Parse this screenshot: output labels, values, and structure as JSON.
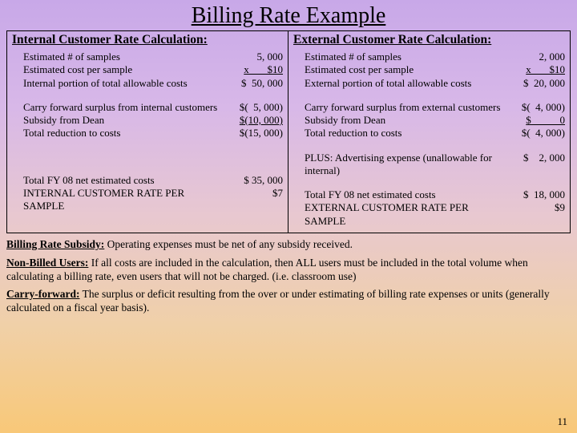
{
  "title": "Billing Rate Example",
  "internal": {
    "heading": "Internal Customer Rate Calculation:",
    "rows1": [
      {
        "label": "Estimated # of samples",
        "value": "5, 000"
      },
      {
        "label": "Estimated cost per sample",
        "value": "x       $10",
        "underline": true
      },
      {
        "label": "Internal portion of total allowable costs",
        "value": "$  50, 000"
      }
    ],
    "rows2": [
      {
        "label": "Carry forward surplus from internal customers",
        "value": "$(  5, 000)"
      },
      {
        "label": "Subsidy from Dean",
        "value": "$(10, 000)",
        "underline": true
      },
      {
        "label": "Total reduction to costs",
        "value": "$(15, 000)"
      }
    ],
    "rows3": [
      {
        "label": "Total FY 08 net estimated costs",
        "value": "$ 35, 000"
      },
      {
        "label": "INTERNAL CUSTOMER RATE PER SAMPLE",
        "value": "$7"
      }
    ]
  },
  "external": {
    "heading": "External Customer Rate Calculation:",
    "rows1": [
      {
        "label": "Estimated # of samples",
        "value": "2, 000"
      },
      {
        "label": "Estimated cost per sample",
        "value": "x       $10",
        "underline": true
      },
      {
        "label": "External portion of total allowable costs",
        "value": "$  20, 000"
      }
    ],
    "rows2": [
      {
        "label": "Carry forward surplus from external customers",
        "value": "$(  4, 000)"
      },
      {
        "label": "Subsidy from Dean",
        "value": "$           0",
        "underline": true
      },
      {
        "label": "Total reduction to costs",
        "value": "$(  4, 000)"
      }
    ],
    "plus": {
      "label": "PLUS:  Advertising expense (unallowable for internal)",
      "value": "$    2, 000"
    },
    "rows3": [
      {
        "label": "Total FY 08 net estimated costs",
        "value": "$  18, 000"
      },
      {
        "label": "EXTERNAL CUSTOMER RATE PER SAMPLE",
        "value": "$9"
      }
    ]
  },
  "notes": {
    "n1h": "Billing Rate Subsidy:",
    "n1": " Operating expenses must be net of any subsidy received.",
    "n2h": "Non-Billed Users:",
    "n2": "  If all costs are included in the calculation, then ALL users must be included in the total volume when calculating a billing rate, even users that will not be charged.  (i.e. classroom use)",
    "n3h": "Carry-forward:",
    "n3": " The surplus or deficit resulting from the over or under estimating of billing rate expenses or units (generally calculated on a fiscal year basis)."
  },
  "pagenum": "11"
}
